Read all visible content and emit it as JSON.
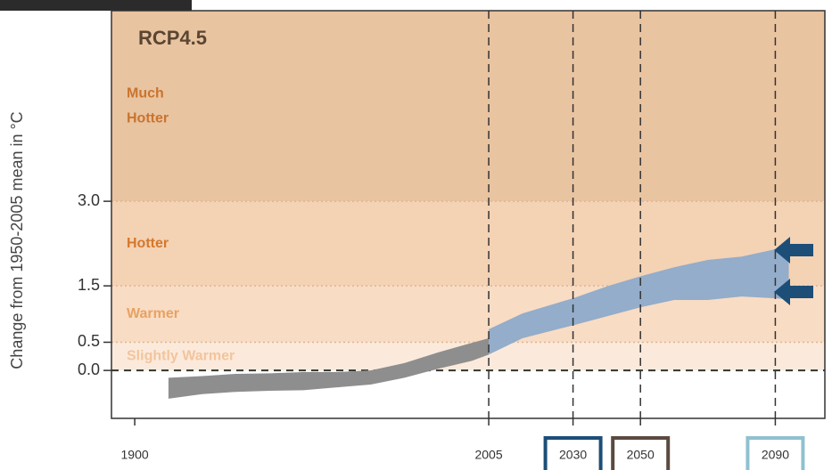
{
  "chart_data": {
    "type": "band",
    "title": "RCP4.5",
    "y_label": "Change from 1950-2005 mean in °C",
    "xlim": [
      1893.1,
      2104.7
    ],
    "ylim": [
      -0.85,
      6.38
    ],
    "xticks": [
      1900,
      2005,
      2030,
      2050,
      2090
    ],
    "xtick_vlines": [
      false,
      true,
      true,
      true,
      true
    ],
    "xtick_box_colors": [
      null,
      null,
      "#1c4e78",
      "#5b4a40",
      "#8fc1cf"
    ],
    "yticks": [
      {
        "value": 0,
        "label": "0.0"
      },
      0.5,
      1.5,
      {
        "value": 3,
        "label": "3.0"
      }
    ],
    "zones": [
      {
        "label": [
          "Slightly Warmer"
        ],
        "from": 0,
        "to": 0.5,
        "color": "#fbeadc",
        "text_color": "#f3c49b"
      },
      {
        "label": [
          "Warmer"
        ],
        "to": 1.5,
        "color": "#f8dcc4",
        "text_color": "#e8a263"
      },
      {
        "label": [
          "Hotter"
        ],
        "to": 3,
        "color": "#f4d2b4",
        "text_color": "#d5782c"
      },
      {
        "label": [
          "Much",
          "Hotter"
        ],
        "to": null,
        "color": "#e9c4a1",
        "text_color": "#c9742e"
      }
    ],
    "bands": [
      {
        "color": "#8e8e8e",
        "x": [
          1910,
          1920,
          1930,
          1940,
          1950,
          1960,
          1970,
          1980,
          1990,
          2000,
          2005
        ],
        "low": [
          -0.5,
          -0.42,
          -0.38,
          -0.36,
          -0.35,
          -0.3,
          -0.25,
          -0.13,
          0.03,
          0.17,
          0.28
        ],
        "high": [
          -0.13,
          -0.1,
          -0.06,
          -0.05,
          -0.03,
          -0.03,
          0,
          0.13,
          0.32,
          0.49,
          0.57
        ]
      },
      {
        "color": "#93adca",
        "x": [
          2005,
          2015,
          2030,
          2040,
          2050,
          2060,
          2070,
          2080,
          2090,
          2094
        ],
        "low": [
          0.28,
          0.57,
          0.8,
          0.96,
          1.12,
          1.25,
          1.25,
          1.31,
          1.28,
          1.26
        ],
        "high": [
          0.73,
          1.01,
          1.28,
          1.49,
          1.67,
          1.83,
          1.96,
          2.02,
          2.15,
          2.2
        ]
      }
    ]
  }
}
